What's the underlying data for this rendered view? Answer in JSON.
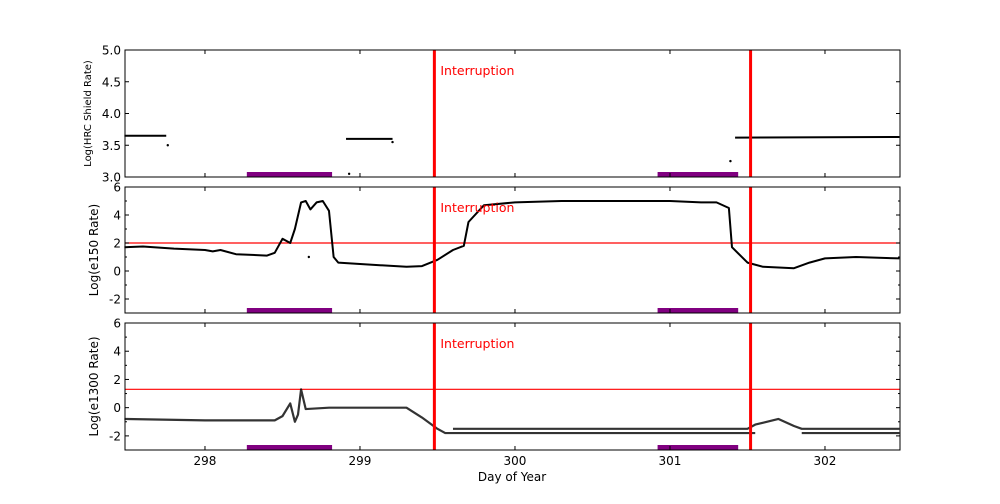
{
  "chart_data": {
    "type": "line",
    "xlabel": "Day of Year",
    "xlim": [
      297.484,
      302.484
    ],
    "xticks": [
      298,
      299,
      300,
      301,
      302
    ],
    "interruptions": [
      299.48,
      301.52
    ],
    "interruption_label": "Interruption",
    "radiation_zone_bars": [
      [
        298.27,
        298.82
      ],
      [
        300.92,
        301.44
      ]
    ],
    "colors": {
      "data": "#000000",
      "interruption": "#ff0000",
      "threshold": "#ff0000",
      "bar": "#800080"
    },
    "panels": [
      {
        "ylabel": "Log(HRC Shield Rate)",
        "ylim": [
          3.0,
          5.0
        ],
        "yticks": [
          "3.0",
          "3.5",
          "4.0",
          "4.5",
          "5.0"
        ],
        "threshold": null,
        "series": [
          {
            "points": [
              [
                297.48,
                3.65
              ],
              [
                297.75,
                3.65
              ]
            ]
          },
          {
            "points": [
              [
                298.91,
                3.6
              ],
              [
                299.21,
                3.6
              ]
            ]
          },
          {
            "points": [
              [
                301.42,
                3.62
              ],
              [
                302.48,
                3.63
              ]
            ]
          }
        ],
        "dots": [
          [
            297.76,
            3.5
          ],
          [
            298.93,
            3.05
          ],
          [
            299.21,
            3.55
          ],
          [
            301.39,
            3.25
          ]
        ]
      },
      {
        "ylabel": "Log(e150  Rate)",
        "ylim": [
          -3,
          6
        ],
        "yticks": [
          "-2",
          "0",
          "2",
          "4",
          "6"
        ],
        "threshold": 2,
        "series": [
          {
            "points": [
              [
                297.48,
                1.7
              ],
              [
                297.6,
                1.75
              ],
              [
                297.8,
                1.6
              ],
              [
                298.0,
                1.5
              ],
              [
                298.05,
                1.4
              ],
              [
                298.1,
                1.5
              ],
              [
                298.2,
                1.2
              ],
              [
                298.4,
                1.1
              ],
              [
                298.45,
                1.3
              ],
              [
                298.5,
                2.3
              ],
              [
                298.55,
                2.0
              ],
              [
                298.58,
                3.0
              ],
              [
                298.62,
                4.9
              ],
              [
                298.65,
                5.0
              ],
              [
                298.68,
                4.4
              ],
              [
                298.72,
                4.9
              ],
              [
                298.76,
                5.0
              ],
              [
                298.8,
                4.3
              ],
              [
                298.83,
                1.0
              ],
              [
                298.86,
                0.6
              ],
              [
                299.0,
                0.5
              ],
              [
                299.3,
                0.3
              ],
              [
                299.4,
                0.35
              ],
              [
                299.5,
                0.8
              ],
              [
                299.6,
                1.5
              ],
              [
                299.67,
                1.8
              ],
              [
                299.7,
                3.5
              ],
              [
                299.8,
                4.7
              ],
              [
                300.0,
                4.9
              ],
              [
                300.3,
                5.0
              ],
              [
                301.0,
                5.0
              ],
              [
                301.2,
                4.9
              ],
              [
                301.3,
                4.9
              ],
              [
                301.38,
                4.5
              ],
              [
                301.4,
                1.7
              ],
              [
                301.5,
                0.6
              ],
              [
                301.6,
                0.3
              ],
              [
                301.8,
                0.2
              ],
              [
                301.9,
                0.6
              ],
              [
                302.0,
                0.9
              ],
              [
                302.2,
                1.0
              ],
              [
                302.48,
                0.9
              ]
            ]
          }
        ],
        "dots": [
          [
            298.67,
            1.0
          ]
        ]
      },
      {
        "ylabel": "Log(e1300 Rate)",
        "ylim": [
          -3,
          6
        ],
        "yticks": [
          "-2",
          "0",
          "2",
          "4",
          "6"
        ],
        "threshold": 1.3,
        "series": [
          {
            "points": [
              [
                297.48,
                -0.8
              ],
              [
                298.0,
                -0.9
              ],
              [
                298.45,
                -0.9
              ],
              [
                298.5,
                -0.6
              ],
              [
                298.55,
                0.3
              ],
              [
                298.58,
                -1.0
              ],
              [
                298.6,
                -0.5
              ],
              [
                298.62,
                1.3
              ],
              [
                298.65,
                -0.1
              ],
              [
                298.8,
                0.0
              ],
              [
                299.3,
                0.0
              ],
              [
                299.4,
                -0.7
              ],
              [
                299.5,
                -1.5
              ],
              [
                299.55,
                -1.8
              ],
              [
                301.55,
                -1.8
              ]
            ]
          },
          {
            "points": [
              [
                299.6,
                -1.5
              ],
              [
                301.5,
                -1.5
              ],
              [
                301.55,
                -1.2
              ],
              [
                301.7,
                -0.8
              ],
              [
                301.8,
                -1.3
              ],
              [
                301.85,
                -1.5
              ],
              [
                302.48,
                -1.5
              ]
            ]
          },
          {
            "points": [
              [
                301.85,
                -1.8
              ],
              [
                302.48,
                -1.8
              ]
            ]
          }
        ],
        "dots": []
      }
    ]
  }
}
